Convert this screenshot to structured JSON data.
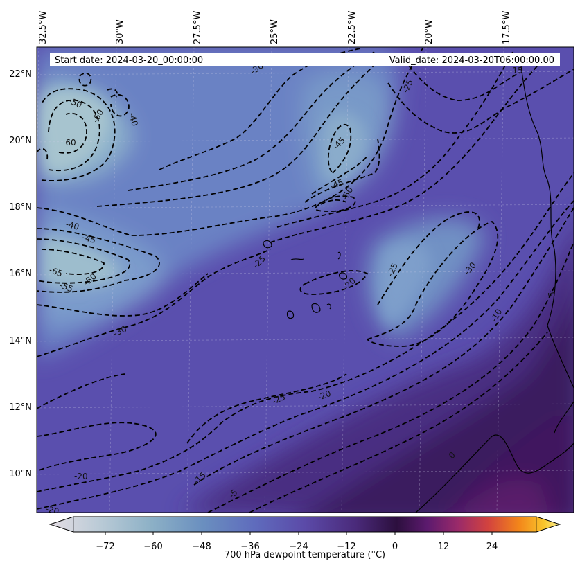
{
  "header": {
    "start_date": "Start date: 2024-03-20_00:00:00",
    "valid_date": "Valid_date: 2024-03-20T06:00:00.00"
  },
  "longitude_labels": [
    "32.5°W",
    "30°W",
    "27.5°W",
    "25°W",
    "22.5°W",
    "20°W",
    "17.5°W"
  ],
  "latitude_labels": [
    "22°N",
    "20°N",
    "18°N",
    "16°N",
    "14°N",
    "12°N",
    "10°N"
  ],
  "contour_labels": [
    "-30",
    "-25",
    "-50",
    "-40",
    "-60",
    "-45",
    "-45",
    "-50",
    "-40",
    "-45",
    "-60",
    "-65",
    "-55",
    "-50",
    "-25",
    "-20",
    "-25",
    "-30",
    "-30",
    "-25",
    "-20",
    "-15",
    "-5",
    "-20",
    "-20",
    "-15",
    "-10",
    "0",
    "-5"
  ],
  "colorbar": {
    "label": "700 hPa dewpoint temperature (°C)",
    "ticks": [
      "−72",
      "−60",
      "−48",
      "−36",
      "−24",
      "−12",
      "0",
      "12",
      "24"
    ]
  },
  "chart_data": {
    "type": "heatmap",
    "variable": "700 hPa dewpoint temperature",
    "units": "°C",
    "colorbar_range": [
      -84,
      36
    ],
    "extend": "both",
    "contour_levels": [
      -65,
      -60,
      -55,
      -50,
      -45,
      -40,
      -30,
      -25,
      -20,
      -15,
      -10,
      -5,
      0
    ],
    "contour_style": "dashed for negative, solid for zero",
    "lon_range": [
      "33°W",
      "15.5°W"
    ],
    "lat_range": [
      "8.7°N",
      "22.8°N"
    ],
    "colormap": "twilight_shifted-like (pale grey/blue at low values, purple near 0, red-yellow above 0)"
  }
}
